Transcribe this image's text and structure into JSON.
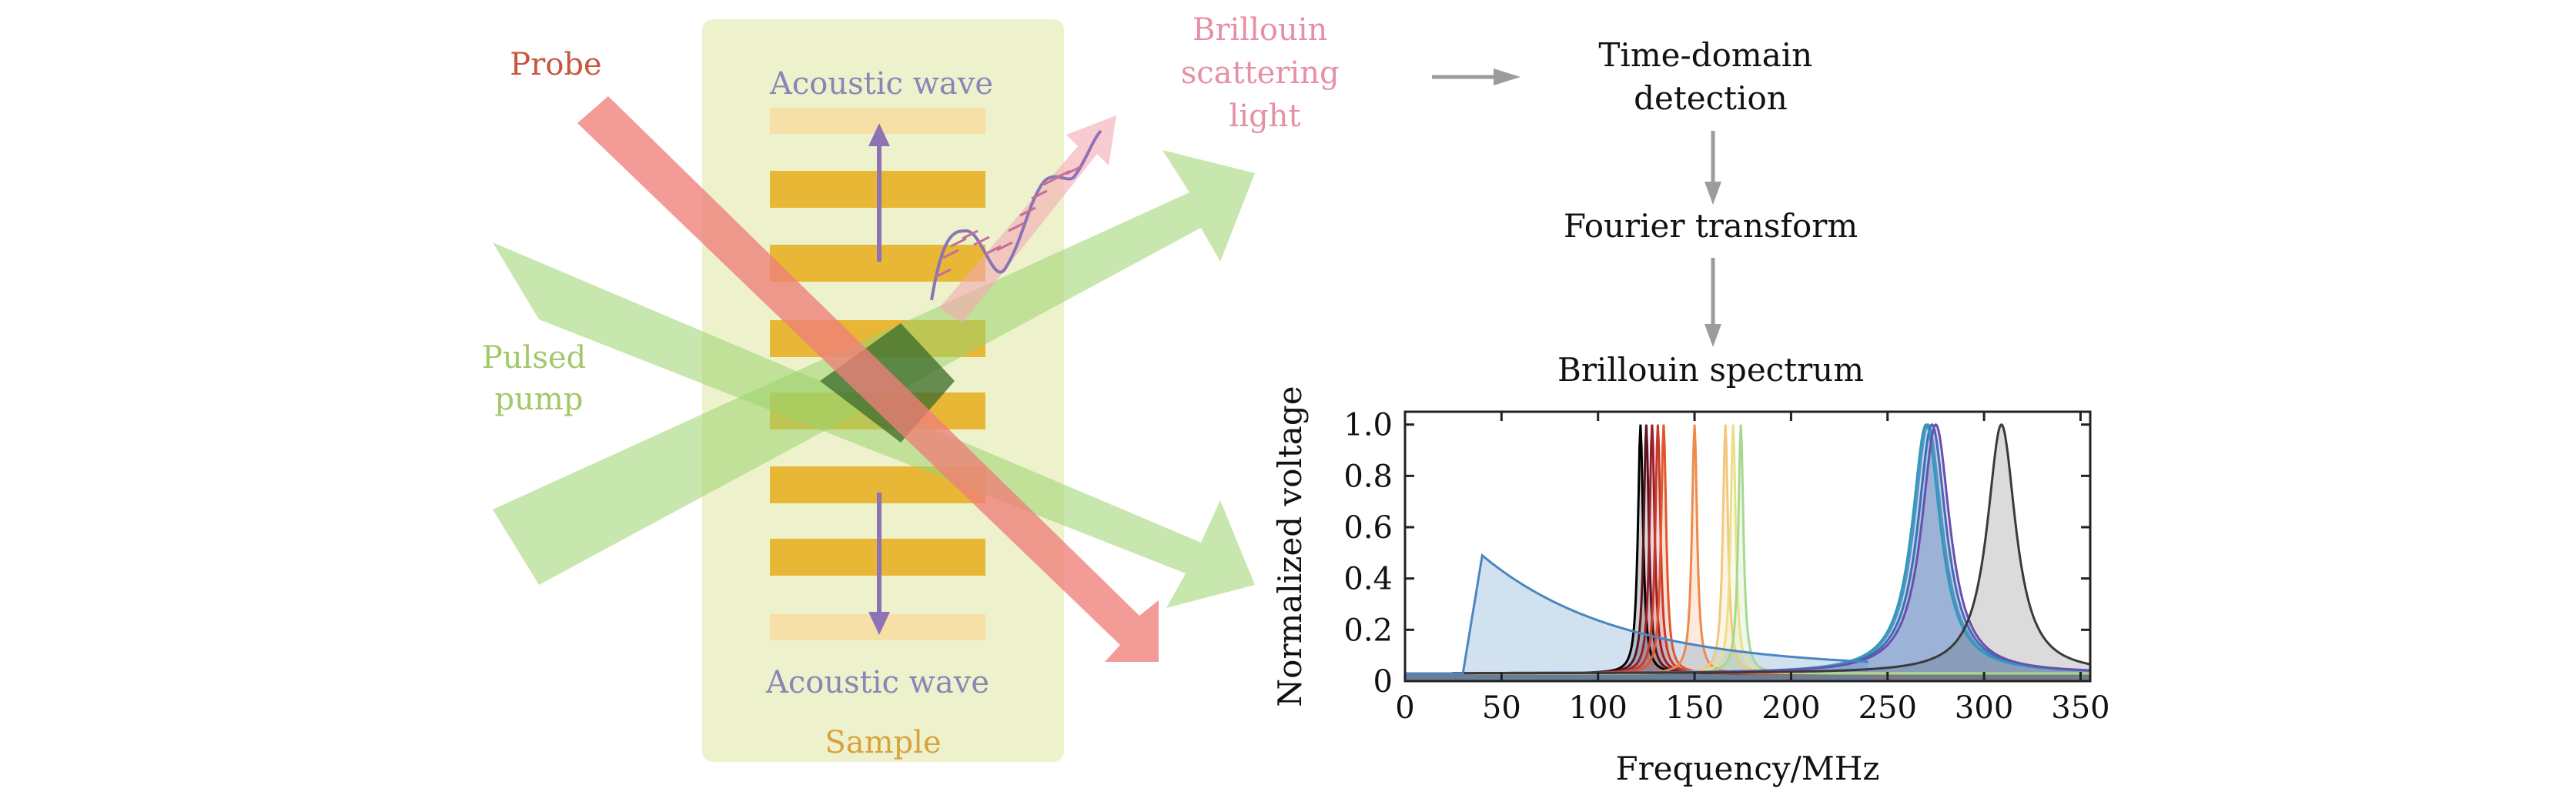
{
  "labels": {
    "probe": "Probe",
    "pulsed_pump": [
      "Pulsed",
      "pump"
    ],
    "acoustic_wave_top": "Acoustic wave",
    "acoustic_wave_bottom": "Acoustic wave",
    "sample": "Sample",
    "brillouin_scattering_light": [
      "Brillouin",
      "scattering",
      "light"
    ]
  },
  "flow": {
    "time_domain_detection": [
      "Time-domain",
      "detection"
    ],
    "fourier_transform": "Fourier transform",
    "brillouin_spectrum": "Brillouin spectrum"
  },
  "colors": {
    "probe_text": "#c8553d",
    "pump_text": "#a3c86a",
    "acoustic_text": "#8a85b8",
    "sample_text": "#d9a23c",
    "brillouin_text": "#e690a6",
    "sample_panel": "#eef2cc",
    "layer_gold": "#e8b735",
    "layer_pale": "#f7dfa8",
    "pump_beam": "#9ad46c",
    "probe_beam": "#ee7f7a",
    "arrow_purple": "#8e72b6",
    "flow_arrow": "#9c9c9c"
  },
  "chart_data": {
    "type": "line",
    "xlabel": "Frequency/MHz",
    "ylabel": "Normalized voltage",
    "xlim": [
      0,
      355
    ],
    "ylim": [
      0,
      1.05
    ],
    "xticks": [
      0,
      50,
      100,
      150,
      200,
      250,
      300,
      350
    ],
    "yticks": [
      0,
      0.2,
      0.4,
      0.6,
      0.8,
      1.0
    ],
    "ytick_labels": [
      "0",
      "0.2",
      "0.4",
      "0.6",
      "0.8",
      "1.0"
    ],
    "fill_under_peaks": true,
    "series": [
      {
        "color": "#000000",
        "peak": 122
      },
      {
        "color": "#5a1422",
        "peak": 125
      },
      {
        "color": "#9b1f2b",
        "peak": 128
      },
      {
        "color": "#c73a2c",
        "peak": 131
      },
      {
        "color": "#e0572c",
        "peak": 134
      },
      {
        "color": "#ef8a4a",
        "peak": 150
      },
      {
        "color": "#f3c77f",
        "peak": 166
      },
      {
        "color": "#e9e18a",
        "peak": 170
      },
      {
        "color": "#a7d88f",
        "peak": 174
      },
      {
        "color": "#5d8fc8",
        "peak": 271
      },
      {
        "color": "#3e6fb3",
        "peak": 273
      },
      {
        "color": "#2f9bb8",
        "peak": 270
      },
      {
        "color": "#6a4fb0",
        "peak": 275
      },
      {
        "color": "#3a3a3a",
        "peak": 309
      }
    ],
    "low_frequency_feature": {
      "x_peak": 40,
      "y_peak": 0.49,
      "color": "#4a86c0"
    }
  }
}
